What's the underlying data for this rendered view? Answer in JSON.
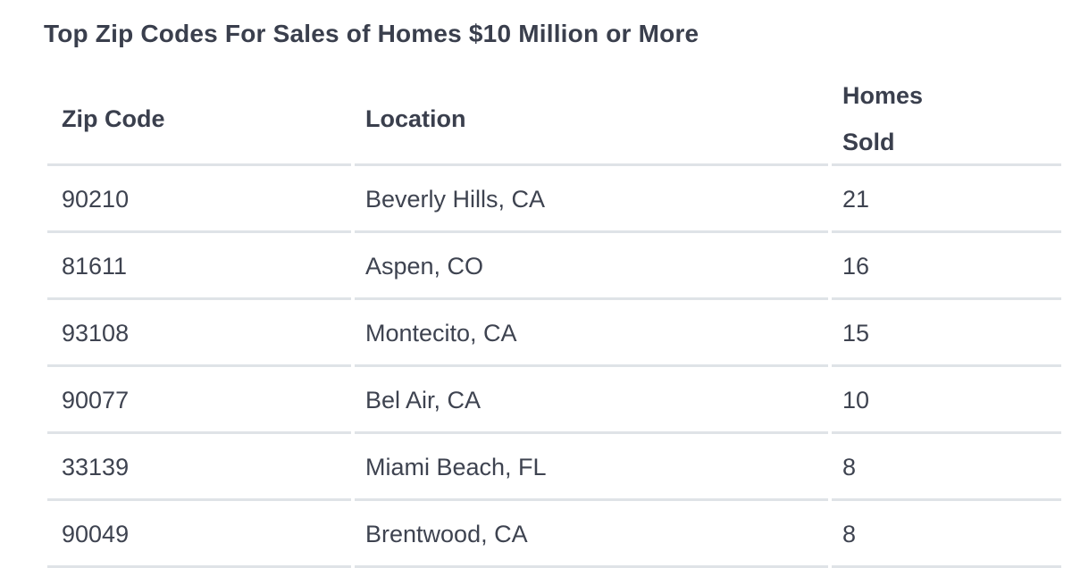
{
  "title": "Top Zip Codes For Sales of Homes $10 Million or More",
  "table": {
    "headers": {
      "zip": "Zip Code",
      "location": "Location",
      "homes_line1": "Homes",
      "homes_line2": "Sold"
    },
    "rows": [
      {
        "zip": "90210",
        "location": "Beverly Hills, CA",
        "homes_sold": "21"
      },
      {
        "zip": "81611",
        "location": "Aspen, CO",
        "homes_sold": "16"
      },
      {
        "zip": "93108",
        "location": "Montecito, CA",
        "homes_sold": "15"
      },
      {
        "zip": "90077",
        "location": "Bel Air, CA",
        "homes_sold": "10"
      },
      {
        "zip": "33139",
        "location": "Miami Beach, FL",
        "homes_sold": "8"
      },
      {
        "zip": "90049",
        "location": "Brentwood, CA",
        "homes_sold": "8"
      }
    ]
  }
}
